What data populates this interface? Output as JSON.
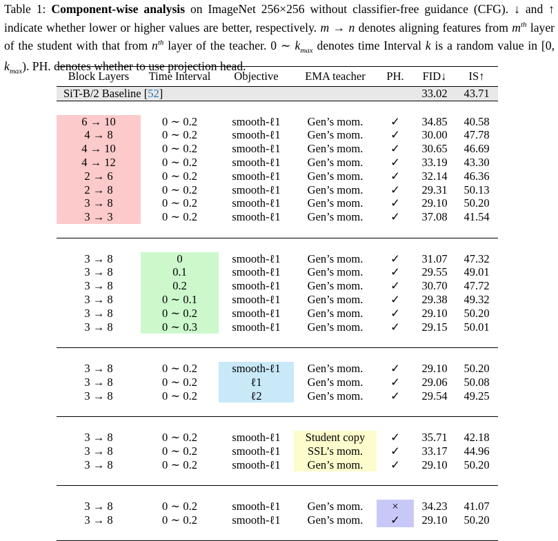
{
  "caption": {
    "label": "Table 1: ",
    "bold": "Component-wise analysis",
    "text1": " on ImageNet 256×256 without classifier-free guidance (CFG). ↓ and ↑ indicate whether lower or higher values are better, respectively. ",
    "m": "m",
    "arrow": " → ",
    "n": "n",
    "text2": " denotes aligning features from ",
    "mth": "m",
    "th1": "th",
    "text3": " layer of the student with that from ",
    "nth": "n",
    "th2": "th",
    "text4": " layer of the teacher. 0 ∼ ",
    "kmax": "k",
    "max": "max",
    "text5": " denotes time Interval ",
    "k": "k",
    "text6": " is a random value in [0, ",
    "kmax2": "k",
    "max2": "max",
    "text7": "). PH. denotes whether to use projection head."
  },
  "headers": [
    "Block Layers",
    "Time Interval",
    "Objective",
    "EMA teacher",
    "PH.",
    "FID↓",
    "IS↑"
  ],
  "baseline": {
    "label": "SiT-B/2 Baseline [",
    "ref": "52",
    "close": "]",
    "fid": "33.02",
    "is": "43.71"
  },
  "groups": [
    {
      "highlight_col": 0,
      "highlight": "red",
      "rows": [
        [
          "6 → 10",
          "0 ∼ 0.2",
          "smooth-ℓ1",
          "Gen’s mom.",
          "✓",
          "34.85",
          "40.58"
        ],
        [
          "4 → 8",
          "0 ∼ 0.2",
          "smooth-ℓ1",
          "Gen’s mom.",
          "✓",
          "30.00",
          "47.78"
        ],
        [
          "4 → 10",
          "0 ∼ 0.2",
          "smooth-ℓ1",
          "Gen’s mom.",
          "✓",
          "30.65",
          "46.69"
        ],
        [
          "4 → 12",
          "0 ∼ 0.2",
          "smooth-ℓ1",
          "Gen’s mom.",
          "✓",
          "33.19",
          "43.30"
        ],
        [
          "2 → 6",
          "0 ∼ 0.2",
          "smooth-ℓ1",
          "Gen’s mom.",
          "✓",
          "32.14",
          "46.36"
        ],
        [
          "2 → 8",
          "0 ∼ 0.2",
          "smooth-ℓ1",
          "Gen’s mom.",
          "✓",
          "29.31",
          "50.13"
        ],
        [
          "3 → 8",
          "0 ∼ 0.2",
          "smooth-ℓ1",
          "Gen’s mom.",
          "✓",
          "29.10",
          "50.20"
        ],
        [
          "3 → 3",
          "0 ∼ 0.2",
          "smooth-ℓ1",
          "Gen’s mom.",
          "✓",
          "37.08",
          "41.54"
        ]
      ],
      "bold": [
        [
          6,
          5
        ],
        [
          6,
          6
        ]
      ]
    },
    {
      "highlight_col": 1,
      "highlight": "green",
      "rows": [
        [
          "3 → 8",
          "0",
          "smooth-ℓ1",
          "Gen’s mom.",
          "✓",
          "31.07",
          "47.32"
        ],
        [
          "3 → 8",
          "0.1",
          "smooth-ℓ1",
          "Gen’s mom.",
          "✓",
          "29.55",
          "49.01"
        ],
        [
          "3 → 8",
          "0.2",
          "smooth-ℓ1",
          "Gen’s mom.",
          "✓",
          "30.70",
          "47.72"
        ],
        [
          "3 → 8",
          "0 ∼ 0.1",
          "smooth-ℓ1",
          "Gen’s mom.",
          "✓",
          "29.38",
          "49.32"
        ],
        [
          "3 → 8",
          "0 ∼ 0.2",
          "smooth-ℓ1",
          "Gen’s mom.",
          "✓",
          "29.10",
          "50.20"
        ],
        [
          "3 → 8",
          "0 ∼ 0.3",
          "smooth-ℓ1",
          "Gen’s mom.",
          "✓",
          "29.15",
          "50.01"
        ]
      ],
      "bold": [
        [
          4,
          5
        ],
        [
          4,
          6
        ]
      ]
    },
    {
      "highlight_col": 2,
      "highlight": "blue",
      "rows": [
        [
          "3 → 8",
          "0 ∼ 0.2",
          "smooth-ℓ1",
          "Gen’s mom.",
          "✓",
          "29.10",
          "50.20"
        ],
        [
          "3 → 8",
          "0 ∼ 0.2",
          "ℓ1",
          "Gen’s mom.",
          "✓",
          "29.06",
          "50.08"
        ],
        [
          "3 → 8",
          "0 ∼ 0.2",
          "ℓ2",
          "Gen’s mom.",
          "✓",
          "29.54",
          "49.25"
        ]
      ],
      "bold": [
        [
          0,
          6
        ],
        [
          1,
          5
        ]
      ]
    },
    {
      "highlight_col": 3,
      "highlight": "yellow",
      "rows": [
        [
          "3 → 8",
          "0 ∼ 0.2",
          "smooth-ℓ1",
          "Student copy",
          "✓",
          "35.71",
          "42.18"
        ],
        [
          "3 → 8",
          "0 ∼ 0.2",
          "smooth-ℓ1",
          "SSL’s mom.",
          "✓",
          "33.17",
          "44.96"
        ],
        [
          "3 → 8",
          "0 ∼ 0.2",
          "smooth-ℓ1",
          "Gen’s mom.",
          "✓",
          "29.10",
          "50.20"
        ]
      ],
      "bold": [
        [
          2,
          5
        ],
        [
          2,
          6
        ]
      ]
    },
    {
      "highlight_col": 4,
      "highlight": "purple",
      "rows": [
        [
          "3 → 8",
          "0 ∼ 0.2",
          "smooth-ℓ1",
          "Gen’s mom.",
          "×",
          "34.23",
          "41.07"
        ],
        [
          "3 → 8",
          "0 ∼ 0.2",
          "smooth-ℓ1",
          "Gen’s mom.",
          "✓",
          "29.10",
          "50.20"
        ]
      ],
      "bold": [
        [
          1,
          5
        ],
        [
          1,
          6
        ]
      ]
    }
  ]
}
